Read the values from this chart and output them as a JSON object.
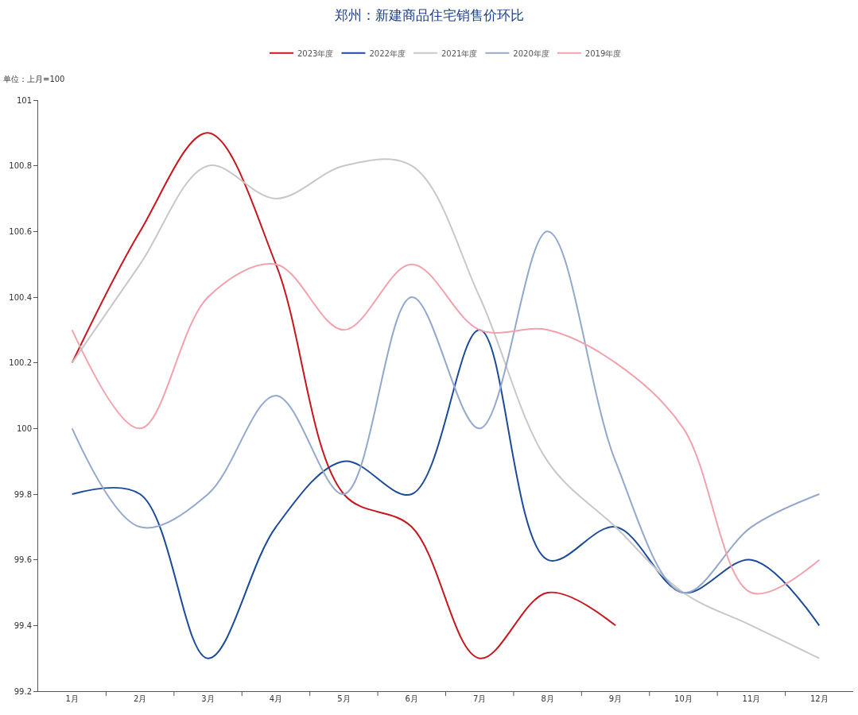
{
  "chart_data": {
    "type": "line",
    "title": "郑州：新建商品住宅销售价环比",
    "ylabel": "单位：上月=100",
    "categories": [
      "1月",
      "2月",
      "3月",
      "4月",
      "5月",
      "6月",
      "7月",
      "8月",
      "9月",
      "10月",
      "11月",
      "12月"
    ],
    "series": [
      {
        "name": "2023年度",
        "color": "#c8161d",
        "values": [
          100.2,
          100.6,
          100.9,
          100.5,
          99.8,
          99.7,
          99.3,
          99.5,
          99.4,
          null,
          null,
          null
        ]
      },
      {
        "name": "2022年度",
        "color": "#1b4a99",
        "values": [
          99.8,
          99.8,
          99.3,
          99.7,
          99.9,
          99.8,
          100.3,
          99.6,
          99.7,
          99.5,
          99.6,
          99.4
        ]
      },
      {
        "name": "2021年度",
        "color": "#c8c8c8",
        "values": [
          100.2,
          100.5,
          100.8,
          100.7,
          100.8,
          100.8,
          100.4,
          99.9,
          99.7,
          99.5,
          99.4,
          99.3
        ]
      },
      {
        "name": "2020年度",
        "color": "#93a8cc",
        "values": [
          100,
          99.7,
          99.8,
          100.1,
          99.8,
          100.4,
          100,
          100.6,
          99.9,
          99.5,
          99.7,
          99.8
        ]
      },
      {
        "name": "2019年度",
        "color": "#f2a2ac",
        "values": [
          100.3,
          100,
          100.4,
          100.5,
          100.3,
          100.5,
          100.3,
          100.3,
          100.2,
          100,
          99.5,
          99.6
        ]
      }
    ],
    "ylim": [
      99.2,
      101
    ],
    "yticks": [
      99.2,
      99.4,
      99.6,
      99.8,
      100,
      100.2,
      100.4,
      100.6,
      100.8,
      101
    ],
    "grid": false,
    "legend": "top",
    "marker": "none",
    "line_style": "solid"
  }
}
